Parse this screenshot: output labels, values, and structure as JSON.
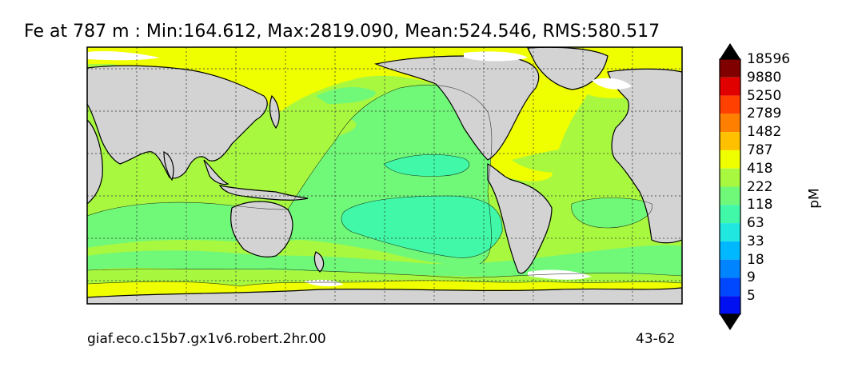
{
  "title": "Fe at 787 m : Min:164.612, Max:2819.090, Mean:524.546, RMS:580.517",
  "footer_left": "giaf.eco.c15b7.gx1v6.robert.2hr.00",
  "footer_right": "43-62",
  "colorbar": {
    "units": "pM",
    "levels": [
      "5",
      "9",
      "18",
      "33",
      "63",
      "118",
      "222",
      "418",
      "787",
      "1482",
      "2789",
      "5250",
      "9880",
      "18596"
    ],
    "colors": [
      "#000080",
      "#0000b8",
      "#0010f0",
      "#0048ff",
      "#0084ff",
      "#00b8ff",
      "#20e8e0",
      "#40f8a8",
      "#70f878",
      "#a8f840",
      "#f0ff00",
      "#ffc000",
      "#ff8000",
      "#ff4000",
      "#e00000",
      "#800000"
    ]
  },
  "map": {
    "land_color": "#d3d3d3",
    "grid": true
  }
}
